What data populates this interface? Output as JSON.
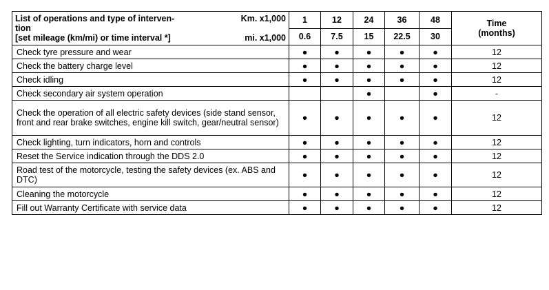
{
  "header": {
    "ops_title_line1": "List of operations and type of interven-",
    "ops_title_line2": "tion",
    "ops_title_line3": "[set mileage (km/mi) or time interval *]",
    "km_label": "Km. x1,000",
    "mi_label": "mi. x1,000",
    "km_values": [
      "1",
      "12",
      "24",
      "36",
      "48"
    ],
    "mi_values": [
      "0.6",
      "7.5",
      "15",
      "22.5",
      "30"
    ],
    "time_label_line1": "Time",
    "time_label_line2": "(months)"
  },
  "dot_symbol": "●",
  "rows": [
    {
      "op": "Check tyre pressure and wear",
      "marks": [
        true,
        true,
        true,
        true,
        true
      ],
      "time": "12"
    },
    {
      "op": "Check the battery charge level",
      "marks": [
        true,
        true,
        true,
        true,
        true
      ],
      "time": "12"
    },
    {
      "op": "Check idling",
      "marks": [
        true,
        true,
        true,
        true,
        true
      ],
      "time": "12"
    },
    {
      "op": "Check secondary air system operation",
      "marks": [
        false,
        false,
        true,
        false,
        true
      ],
      "time": "-"
    },
    {
      "op": "Check the operation of all electric safety devices (side stand sensor, front and rear brake switches, engine kill switch, gear/neutral sensor)",
      "marks": [
        true,
        true,
        true,
        true,
        true
      ],
      "time": "12"
    },
    {
      "op": "Check lighting, turn indicators, horn and controls",
      "marks": [
        true,
        true,
        true,
        true,
        true
      ],
      "time": "12"
    },
    {
      "op": "Reset the Service indication through the DDS 2.0",
      "marks": [
        true,
        true,
        true,
        true,
        true
      ],
      "time": "12"
    },
    {
      "op": "Road test of the motorcycle, testing the safety devices (ex. ABS and DTC)",
      "marks": [
        true,
        true,
        true,
        true,
        true
      ],
      "time": "12"
    },
    {
      "op": "Cleaning the motorcycle",
      "marks": [
        true,
        true,
        true,
        true,
        true
      ],
      "time": "12"
    },
    {
      "op": "Fill out Warranty Certificate with service data",
      "marks": [
        true,
        true,
        true,
        true,
        true
      ],
      "time": "12"
    }
  ]
}
